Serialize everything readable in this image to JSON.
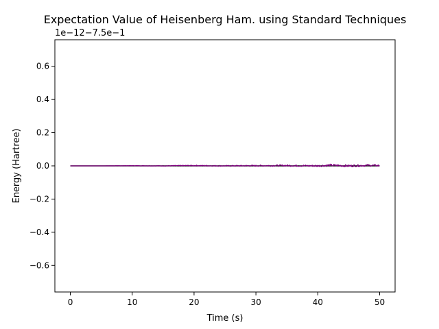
{
  "chart_data": {
    "type": "line",
    "title": "Expectation Value of Heisenberg Ham. using Standard Techniques",
    "xlabel": "Time (s)",
    "ylabel": "Energy (Hartree)",
    "offset_label": "1e−12−7.5e−1",
    "xlim": [
      -2.5,
      52.5
    ],
    "ylim": [
      -0.76,
      0.76
    ],
    "x_ticks": [
      0,
      10,
      20,
      30,
      40,
      50
    ],
    "x_tick_labels": [
      "0",
      "10",
      "20",
      "30",
      "40",
      "50"
    ],
    "y_ticks": [
      -0.6,
      -0.4,
      -0.2,
      0.0,
      0.2,
      0.4,
      0.6
    ],
    "y_tick_labels": [
      "−0.6",
      "−0.4",
      "−0.2",
      "0.0",
      "0.2",
      "0.4",
      "0.6"
    ],
    "grid": false,
    "series": [
      {
        "color": "#000000",
        "x": [
          0,
          50
        ],
        "y": [
          0.0,
          0.0
        ]
      },
      {
        "color": "#800080",
        "x": [
          0,
          5,
          10,
          15,
          20,
          25,
          30,
          35,
          40,
          42,
          45,
          48,
          50
        ],
        "y": [
          0.0,
          0.0,
          0.001,
          0.0,
          0.002,
          0.0,
          0.001,
          0.002,
          0.0,
          0.004,
          0.0,
          0.003,
          0.002
        ],
        "noise_amplitude": [
          0.0,
          0.0,
          0.001,
          0.002,
          0.003,
          0.003,
          0.004,
          0.005,
          0.006,
          0.007,
          0.007,
          0.006,
          0.006
        ]
      }
    ]
  }
}
